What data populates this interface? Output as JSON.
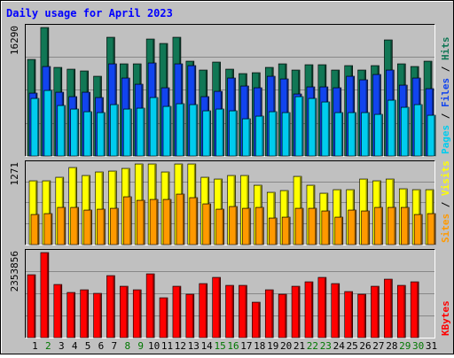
{
  "chart_data": {
    "type": "bar",
    "title": "Daily usage for April 2023",
    "x": [
      "1",
      "2",
      "3",
      "4",
      "5",
      "6",
      "7",
      "8",
      "9",
      "10",
      "11",
      "12",
      "13",
      "14",
      "15",
      "16",
      "17",
      "18",
      "19",
      "20",
      "21",
      "22",
      "23",
      "24",
      "25",
      "26",
      "27",
      "28",
      "29",
      "30",
      "31"
    ],
    "weekend_days": [
      "2",
      "8",
      "9",
      "15",
      "16",
      "22",
      "23",
      "29",
      "30"
    ],
    "colors": {
      "background": "#c0c0c0",
      "title": "#0000ff",
      "hits": "#117755",
      "files": "#1144ee",
      "pages": "#00ccee",
      "visits": "#ffff00",
      "sites": "#ff9900",
      "kbytes": "#ff0000",
      "weekday_label": "#000000",
      "weekend_label": "#007700"
    },
    "panels": [
      {
        "name": "hits-files-pages",
        "ymax_label": "16290",
        "ymax": 16290,
        "legend": [
          {
            "text": "Pages",
            "color": "#00ccee"
          },
          {
            "text": " / ",
            "color": "#000000"
          },
          {
            "text": "Files",
            "color": "#1144ee"
          },
          {
            "text": " / ",
            "color": "#000000"
          },
          {
            "text": "Hits",
            "color": "#117755"
          }
        ],
        "series": [
          {
            "name": "Hits",
            "values": [
              12300,
              16290,
              11250,
              11000,
              10750,
              10100,
              15000,
              11650,
              11700,
              14800,
              14300,
              15000,
              12000,
              10900,
              11900,
              11000,
              10500,
              10600,
              11200,
              11700,
              10950,
              11550,
              11550,
              10950,
              11500,
              10900,
              11500,
              14700,
              11700,
              11300,
              12000
            ]
          },
          {
            "name": "Files",
            "values": [
              8000,
              11300,
              8050,
              7550,
              8050,
              7400,
              11700,
              9900,
              9100,
              11800,
              8700,
              11700,
              11500,
              7500,
              8150,
              9900,
              8900,
              8700,
              10100,
              9800,
              7900,
              8800,
              8750,
              8700,
              10100,
              9700,
              10300,
              10900,
              9000,
              9900,
              8500
            ]
          },
          {
            "name": "Pages",
            "values": [
              7300,
              8300,
              6400,
              6000,
              5600,
              5500,
              6550,
              5900,
              6100,
              7400,
              6300,
              6650,
              6550,
              5700,
              5900,
              5750,
              4700,
              5000,
              5650,
              5500,
              7500,
              7300,
              6800,
              5450,
              5500,
              5500,
              5300,
              7100,
              6200,
              6500,
              5150
            ]
          }
        ]
      },
      {
        "name": "visits-sites",
        "ymax_label": "1271",
        "ymax": 1271,
        "legend": [
          {
            "text": "Sites",
            "color": "#ff9900"
          },
          {
            "text": " / ",
            "color": "#000000"
          },
          {
            "text": "Visits",
            "color": "#ffff00"
          }
        ],
        "series": [
          {
            "name": "Visits",
            "values": [
              1000,
              1000,
              1065,
              1218,
              1090,
              1145,
              1160,
              1198,
              1270,
              1265,
              1142,
              1271,
              1271,
              1060,
              1040,
              1090,
              1090,
              930,
              825,
              855,
              1078,
              942,
              808,
              870,
              868,
              1040,
              1012,
              1040,
              875,
              866,
              867
            ]
          },
          {
            "name": "Sites",
            "values": [
              470,
              488,
              592,
              592,
              549,
              565,
              578,
              752,
              692,
              712,
              715,
              802,
              738,
              638,
              565,
              605,
              578,
              592,
              422,
              432,
              578,
              568,
              525,
              428,
              548,
              528,
              585,
              592,
              585,
              472,
              482
            ]
          }
        ]
      },
      {
        "name": "kbytes",
        "ymax_label": "2353856",
        "ymax": 2353856,
        "legend": [
          {
            "text": "KBytes",
            "color": "#ff0000"
          }
        ],
        "series": [
          {
            "name": "KBytes",
            "values": [
              1750000,
              2353856,
              1461000,
              1244000,
              1326000,
              1225000,
              1712000,
              1434000,
              1326000,
              1774000,
              1100000,
              1424000,
              1213000,
              1486000,
              1673000,
              1457000,
              1457000,
              991000,
              1326000,
              1200000,
              1424000,
              1539000,
              1673000,
              1486000,
              1273000,
              1213000,
              1424000,
              1620000,
              1443000,
              1539000,
              0
            ]
          }
        ]
      }
    ]
  }
}
